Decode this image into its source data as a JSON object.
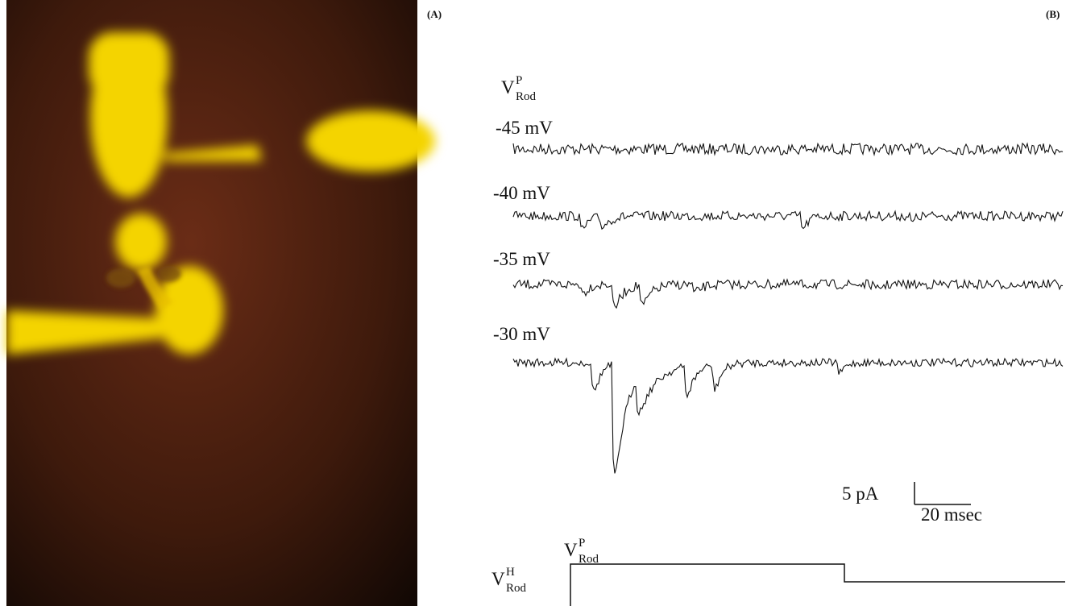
{
  "panel_a": {
    "label": "(A)"
  },
  "panel_b": {
    "label": "(B)",
    "header": {
      "symbol": "V",
      "superscript": "P",
      "subscript": "Rod"
    },
    "traces": [
      {
        "label": "-45 mV"
      },
      {
        "label": "-40 mV"
      },
      {
        "label": "-35 mV"
      },
      {
        "label": "-30 mV"
      }
    ],
    "scale_bar": {
      "current": "5 pA",
      "time": "20 msec"
    },
    "protocol": {
      "holding": {
        "symbol": "V",
        "superscript": "H",
        "subscript": "Rod"
      },
      "pulse": {
        "symbol": "V",
        "superscript": "P",
        "subscript": "Rod"
      }
    }
  }
}
